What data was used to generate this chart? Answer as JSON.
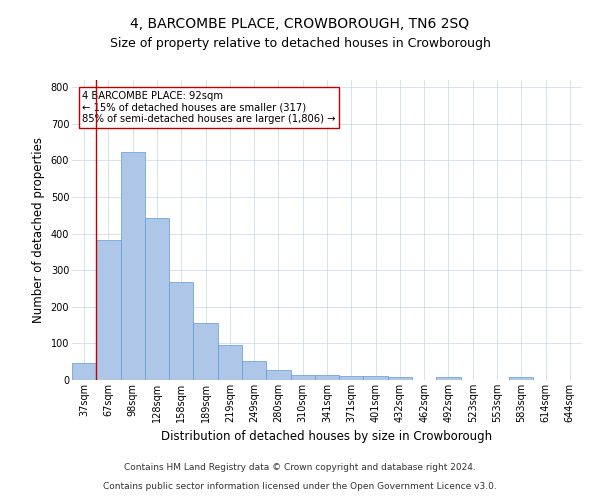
{
  "title": "4, BARCOMBE PLACE, CROWBOROUGH, TN6 2SQ",
  "subtitle": "Size of property relative to detached houses in Crowborough",
  "xlabel": "Distribution of detached houses by size in Crowborough",
  "ylabel": "Number of detached properties",
  "categories": [
    "37sqm",
    "67sqm",
    "98sqm",
    "128sqm",
    "158sqm",
    "189sqm",
    "219sqm",
    "249sqm",
    "280sqm",
    "310sqm",
    "341sqm",
    "371sqm",
    "401sqm",
    "432sqm",
    "462sqm",
    "492sqm",
    "523sqm",
    "553sqm",
    "583sqm",
    "614sqm",
    "644sqm"
  ],
  "values": [
    47,
    383,
    623,
    443,
    268,
    155,
    97,
    52,
    28,
    15,
    15,
    11,
    11,
    9,
    0,
    8,
    0,
    0,
    7,
    0,
    0
  ],
  "bar_color": "#aec6e8",
  "bar_edge_color": "#5b9bd5",
  "vline_color": "#c00000",
  "annotation_text": "4 BARCOMBE PLACE: 92sqm\n← 15% of detached houses are smaller (317)\n85% of semi-detached houses are larger (1,806) →",
  "annotation_box_color": "#ffffff",
  "annotation_box_edge": "#c00000",
  "ylim": [
    0,
    820
  ],
  "yticks": [
    0,
    100,
    200,
    300,
    400,
    500,
    600,
    700,
    800
  ],
  "footer1": "Contains HM Land Registry data © Crown copyright and database right 2024.",
  "footer2": "Contains public sector information licensed under the Open Government Licence v3.0.",
  "bg_color": "#ffffff",
  "grid_color": "#c8d4e8",
  "title_fontsize": 10,
  "subtitle_fontsize": 9,
  "tick_fontsize": 7,
  "label_fontsize": 8.5,
  "footer_fontsize": 6.5
}
